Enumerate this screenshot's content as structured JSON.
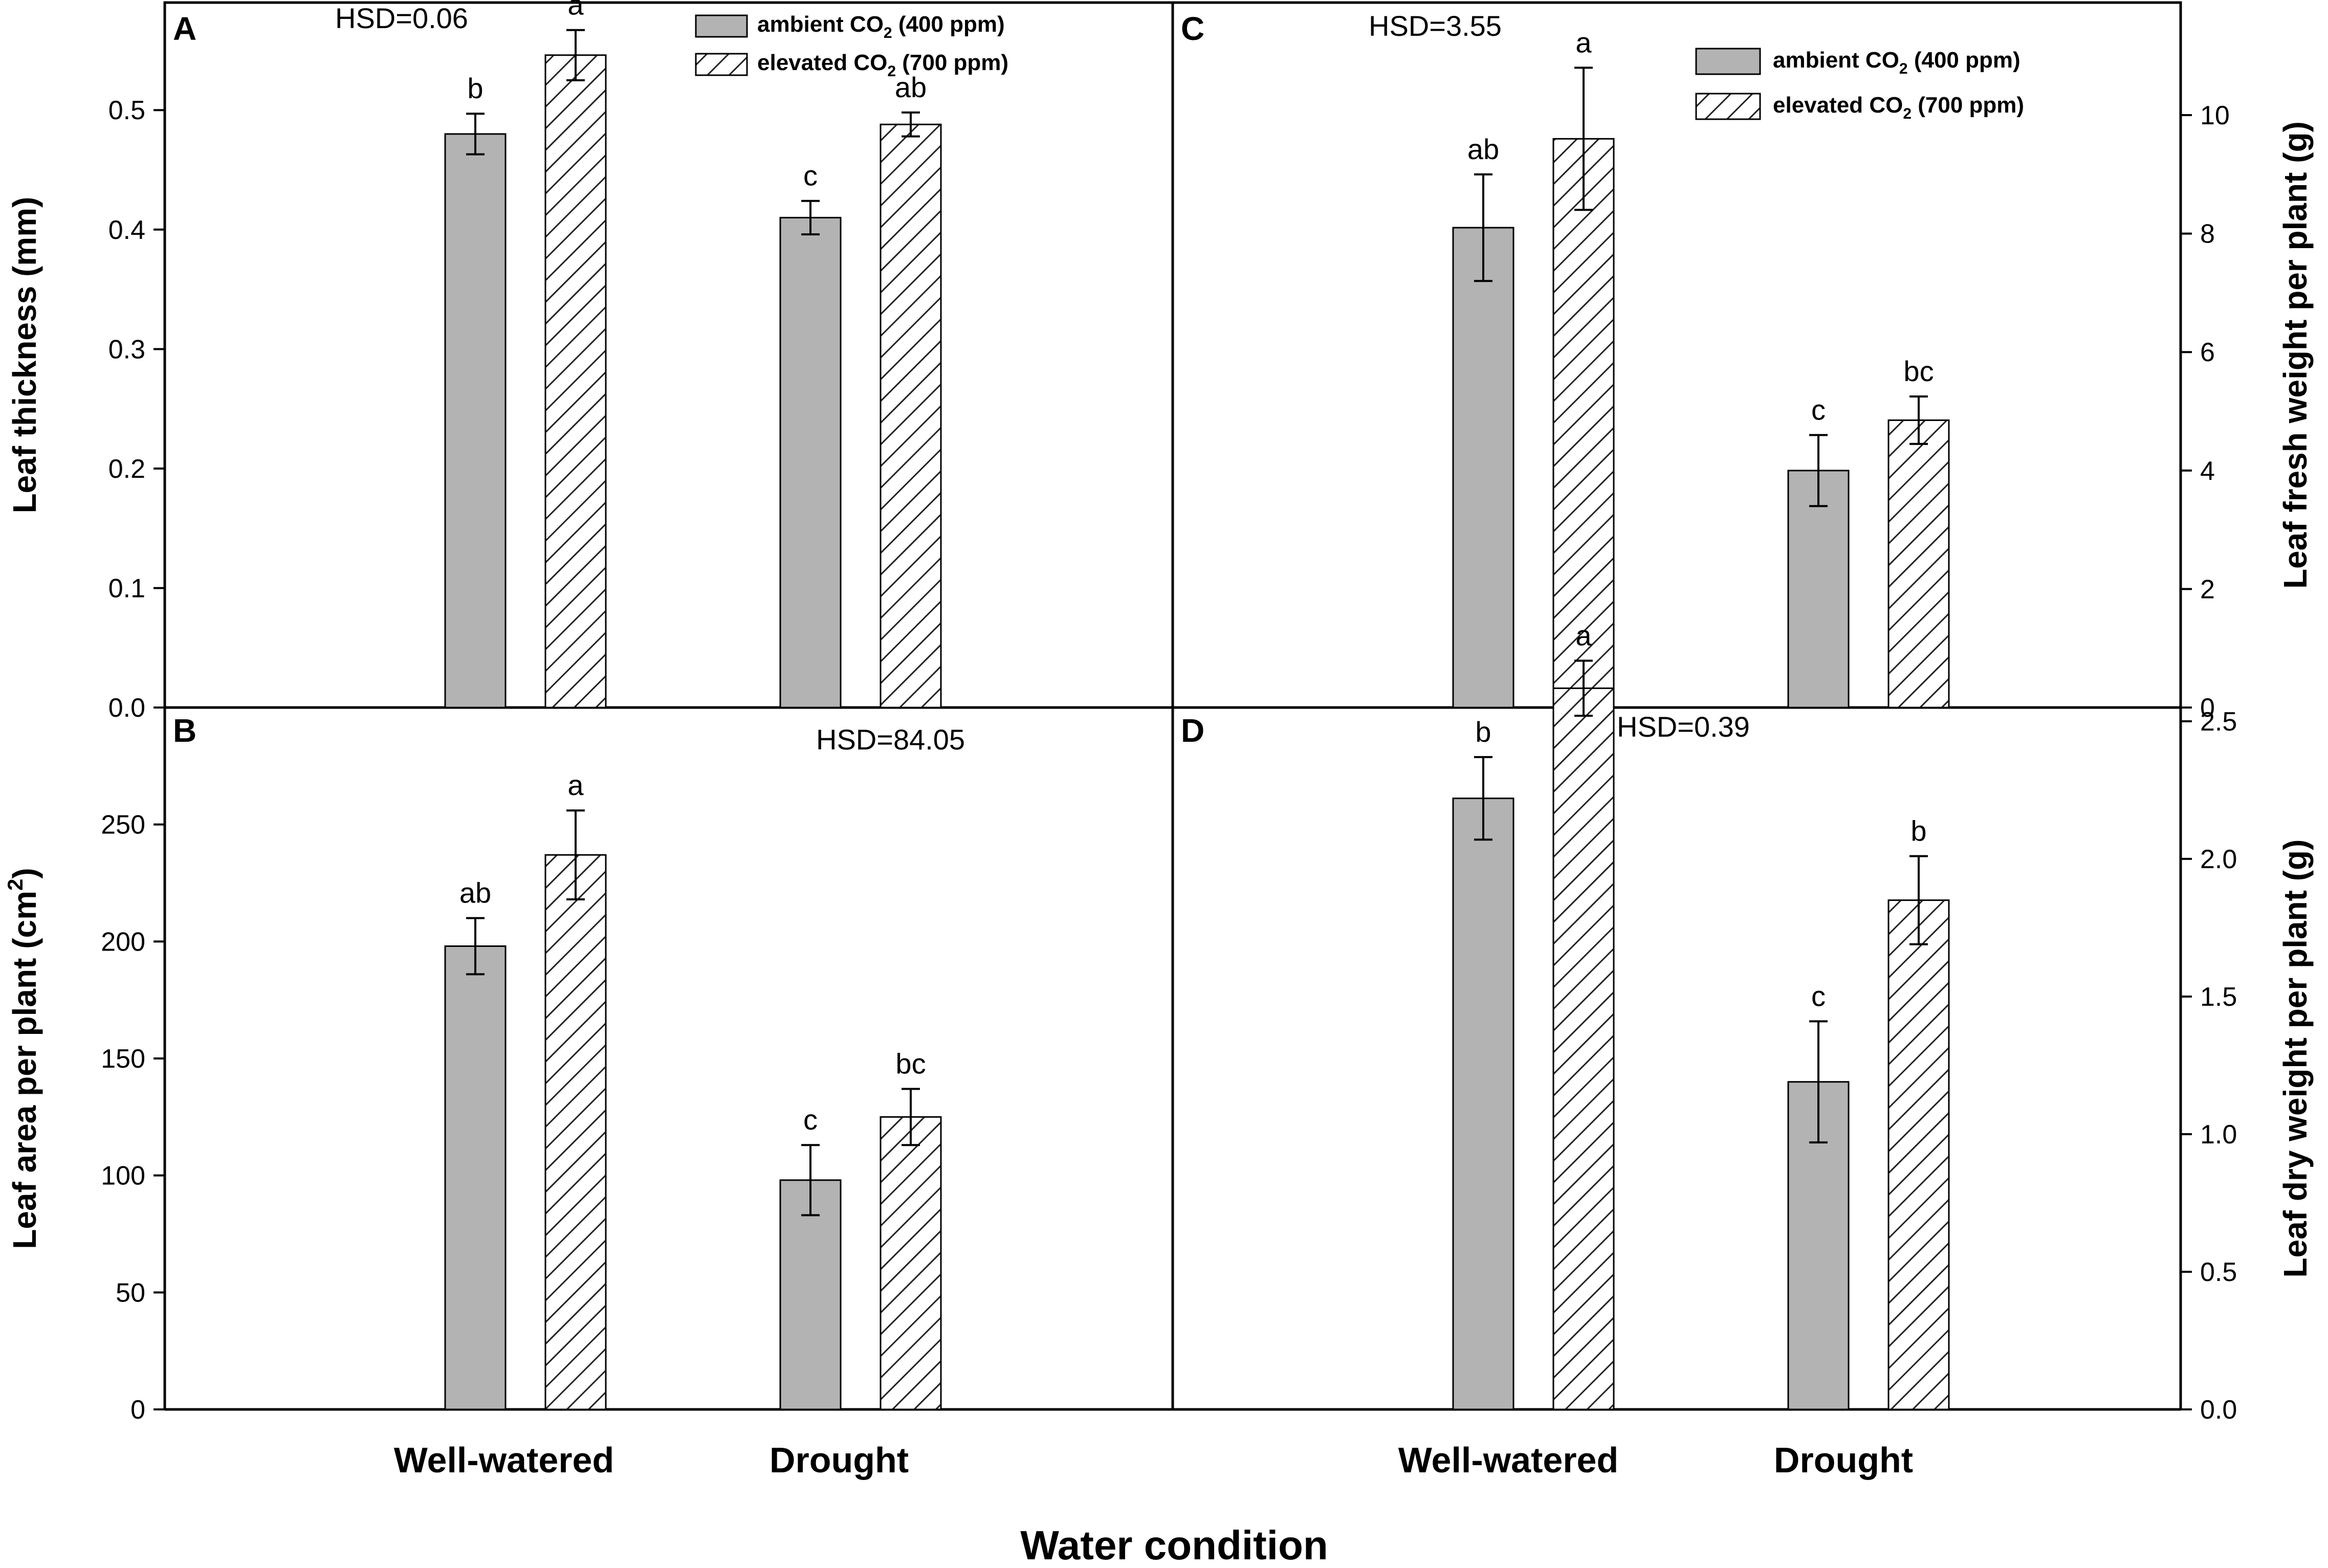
{
  "figure": {
    "x_title": "Water condition",
    "categories": [
      "Well-watered",
      "Drought"
    ]
  },
  "legend": {
    "ambient": {
      "prefix": "ambient CO",
      "sub": "2",
      "suffix": " (400 ppm)"
    },
    "elevated": {
      "prefix": "elevated CO",
      "sub": "2",
      "suffix": " (700 ppm)"
    }
  },
  "colors": {
    "ambient_fill": "#b3b3b3",
    "hatch_line": "#222222",
    "axis": "#000000"
  },
  "chart_data": [
    {
      "panel": "A",
      "type": "bar",
      "title": "",
      "hsd": "HSD=0.06",
      "ylabel": "Leaf thickness (mm)",
      "ylim": [
        0,
        0.59
      ],
      "yticks": [
        0.0,
        0.1,
        0.2,
        0.3,
        0.4,
        0.5
      ],
      "ytick_labels": [
        "0.0",
        "0.1",
        "0.2",
        "0.3",
        "0.4",
        "0.5"
      ],
      "categories": [
        "Well-watered",
        "Drought"
      ],
      "series": [
        {
          "name": "ambient CO2 (400 ppm)",
          "values": [
            0.48,
            0.41
          ],
          "errors": [
            0.017,
            0.014
          ],
          "letters": [
            "b",
            "c"
          ]
        },
        {
          "name": "elevated CO2 (700 ppm)",
          "values": [
            0.546,
            0.488
          ],
          "errors": [
            0.021,
            0.01
          ],
          "letters": [
            "a",
            "ab"
          ]
        }
      ]
    },
    {
      "panel": "B",
      "type": "bar",
      "title": "",
      "hsd": "HSD=84.05",
      "ylabel": "Leaf area per plant (cm2)",
      "ylabel_main": "Leaf area per plant (cm",
      "ylabel_sup": "2",
      "ylabel_end": ")",
      "ylim": [
        0,
        300
      ],
      "yticks": [
        0,
        50,
        100,
        150,
        200,
        250
      ],
      "ytick_labels": [
        "0",
        "50",
        "100",
        "150",
        "200",
        "250"
      ],
      "categories": [
        "Well-watered",
        "Drought"
      ],
      "series": [
        {
          "name": "ambient CO2 (400 ppm)",
          "values": [
            198,
            98
          ],
          "errors": [
            12,
            15
          ],
          "letters": [
            "ab",
            "c"
          ]
        },
        {
          "name": "elevated CO2 (700 ppm)",
          "values": [
            237,
            125
          ],
          "errors": [
            19,
            12
          ],
          "letters": [
            "a",
            "bc"
          ]
        }
      ]
    },
    {
      "panel": "C",
      "type": "bar",
      "title": "",
      "hsd": "HSD=3.55",
      "ylabel": "Leaf fresh weight per plant (g)",
      "ylim": [
        0,
        11.9
      ],
      "yticks": [
        0,
        2,
        4,
        6,
        8,
        10
      ],
      "ytick_labels": [
        "0",
        "2",
        "4",
        "6",
        "8",
        "10"
      ],
      "categories": [
        "Well-watered",
        "Drought"
      ],
      "series": [
        {
          "name": "ambient CO2 (400 ppm)",
          "values": [
            8.1,
            4.0
          ],
          "errors": [
            0.9,
            0.6
          ],
          "letters": [
            "ab",
            "c"
          ]
        },
        {
          "name": "elevated CO2 (700 ppm)",
          "values": [
            9.6,
            4.85
          ],
          "errors": [
            1.2,
            0.4
          ],
          "letters": [
            "a",
            "bc"
          ]
        }
      ]
    },
    {
      "panel": "D",
      "type": "bar",
      "title": "",
      "hsd": "HSD=0.39",
      "ylabel": "Leaf dry weight per plant (g)",
      "ylim": [
        0,
        2.55
      ],
      "yticks": [
        0.0,
        0.5,
        1.0,
        1.5,
        2.0,
        2.5
      ],
      "ytick_labels": [
        "0.0",
        "0.5",
        "1.0",
        "1.5",
        "2.0",
        "2.5"
      ],
      "categories": [
        "Well-watered",
        "Drought"
      ],
      "series": [
        {
          "name": "ambient CO2 (400 ppm)",
          "values": [
            2.22,
            1.19
          ],
          "errors": [
            0.15,
            0.22
          ],
          "letters": [
            "b",
            "c"
          ]
        },
        {
          "name": "elevated CO2 (700 ppm)",
          "values": [
            2.62,
            1.85
          ],
          "errors": [
            0.1,
            0.16
          ],
          "letters": [
            "a",
            "b"
          ]
        }
      ]
    }
  ]
}
